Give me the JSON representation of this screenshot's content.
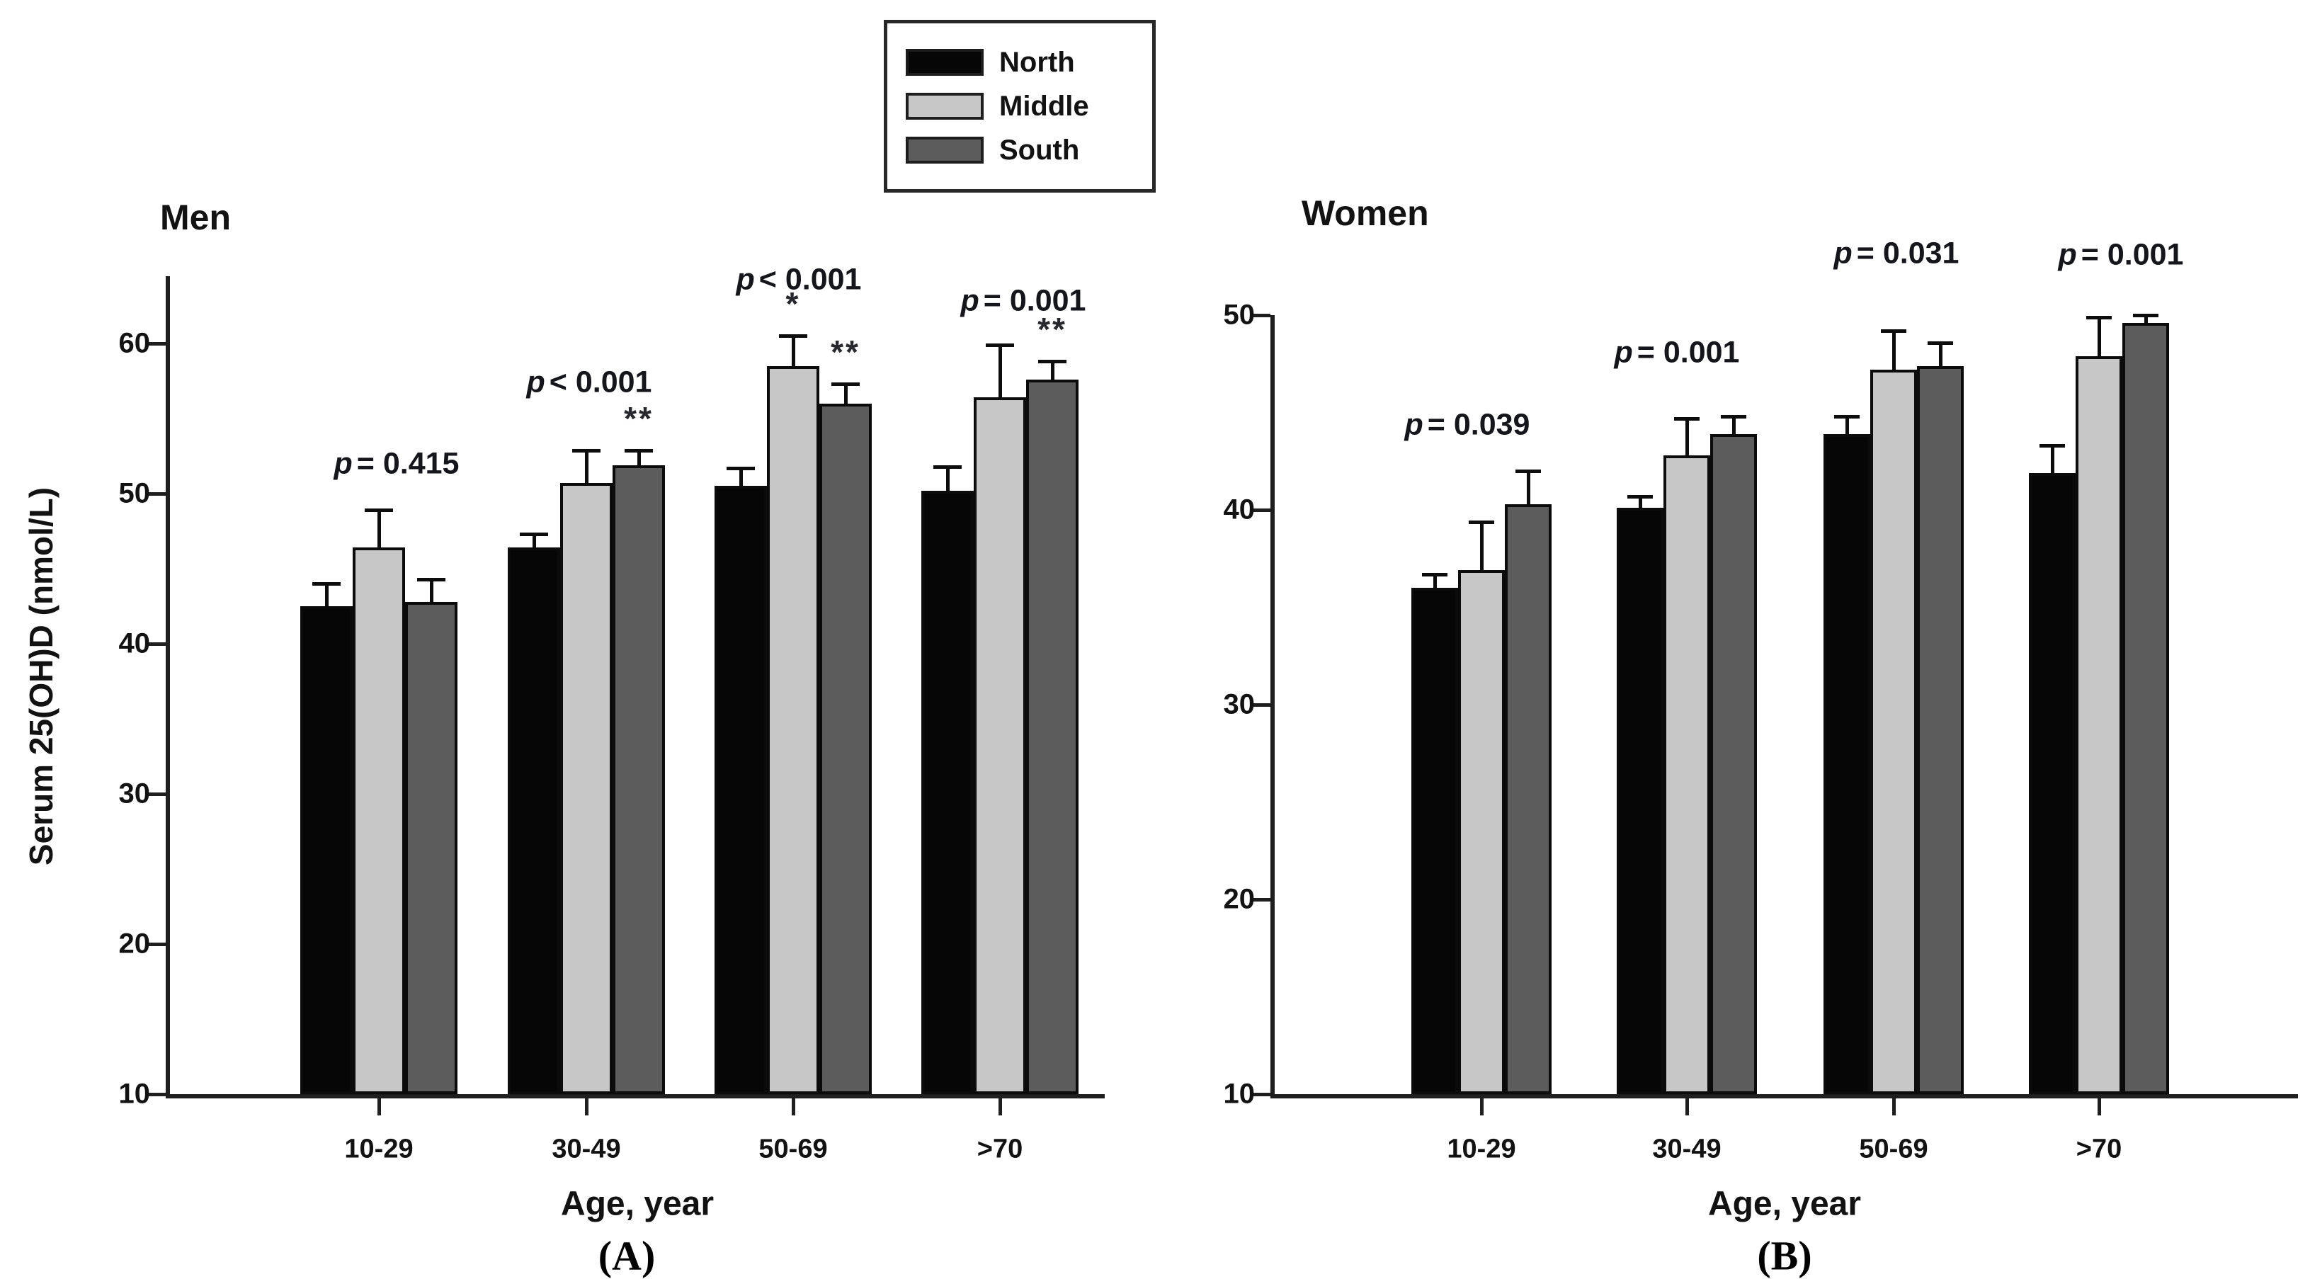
{
  "figure": {
    "panel_a_label": "(A)",
    "panel_b_label": "(B)"
  },
  "legend": {
    "items": [
      {
        "label": "North",
        "color": "#060606"
      },
      {
        "label": "Middle",
        "color": "#c7c7c7"
      },
      {
        "label": "South",
        "color": "#5c5c5c"
      }
    ]
  },
  "chart_data": [
    {
      "type": "bar",
      "panel": "A",
      "title": "Men",
      "xlabel": "Age, year",
      "ylabel": "Serum 25(OH)D (nmol/L)",
      "categories": [
        "10-29",
        "30-49",
        "50-69",
        ">70"
      ],
      "yticks": [
        10,
        20,
        30,
        40,
        50,
        60
      ],
      "ylim": [
        10,
        65
      ],
      "grid": false,
      "legend_position": "top-right-of-panel",
      "series": [
        {
          "name": "North",
          "color": "#060606",
          "values": [
            42.5,
            46.4,
            50.5,
            50.2
          ],
          "errors": [
            1.5,
            0.9,
            1.2,
            1.6
          ],
          "stars": [
            "",
            "",
            "",
            ""
          ]
        },
        {
          "name": "Middle",
          "color": "#c7c7c7",
          "values": [
            46.4,
            50.7,
            58.5,
            56.4
          ],
          "errors": [
            2.5,
            2.2,
            2.0,
            3.5
          ],
          "stars": [
            "",
            "",
            "*",
            ""
          ]
        },
        {
          "name": "South",
          "color": "#5c5c5c",
          "values": [
            42.8,
            51.9,
            56.0,
            57.6
          ],
          "errors": [
            1.5,
            1.0,
            1.3,
            1.2
          ],
          "stars": [
            "",
            "**",
            "**",
            "**"
          ]
        }
      ],
      "p_labels": [
        "p = 0.415",
        "p < 0.001",
        "p < 0.001",
        "p = 0.001"
      ]
    },
    {
      "type": "bar",
      "panel": "B",
      "title": "Women",
      "xlabel": "Age, year",
      "ylabel": "",
      "categories": [
        "10-29",
        "30-49",
        "50-69",
        ">70"
      ],
      "yticks": [
        10,
        20,
        30,
        40,
        50
      ],
      "ylim": [
        10,
        50
      ],
      "grid": false,
      "series": [
        {
          "name": "North",
          "color": "#060606",
          "values": [
            36.0,
            40.1,
            43.9,
            41.9
          ],
          "errors": [
            0.7,
            0.6,
            0.9,
            1.4
          ],
          "stars": [
            "",
            "",
            "",
            ""
          ]
        },
        {
          "name": "Middle",
          "color": "#c7c7c7",
          "values": [
            36.9,
            42.8,
            47.2,
            47.9
          ],
          "errors": [
            2.5,
            1.9,
            2.0,
            2.0
          ],
          "stars": [
            "",
            "",
            "",
            ""
          ]
        },
        {
          "name": "South",
          "color": "#5c5c5c",
          "values": [
            40.3,
            43.9,
            47.4,
            49.6
          ],
          "errors": [
            1.7,
            0.9,
            1.2,
            0.4
          ],
          "stars": [
            "",
            "",
            "",
            ""
          ]
        }
      ],
      "p_labels": [
        "p = 0.039",
        "p = 0.001",
        "p = 0.031",
        "p = 0.001"
      ]
    }
  ]
}
